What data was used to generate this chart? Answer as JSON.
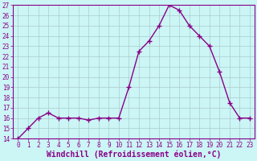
{
  "x": [
    0,
    1,
    2,
    3,
    4,
    5,
    6,
    7,
    8,
    9,
    10,
    11,
    12,
    13,
    14,
    15,
    16,
    17,
    18,
    19,
    20,
    21,
    22,
    23
  ],
  "y": [
    14,
    15,
    16,
    16.5,
    16,
    16,
    16,
    15.8,
    16,
    16,
    16,
    19,
    22.5,
    23.5,
    25,
    27,
    26.5,
    25,
    24,
    23,
    20.5,
    17.5,
    16,
    16
  ],
  "line_color": "#880088",
  "marker": "+",
  "marker_size": 4,
  "marker_lw": 1.0,
  "bg_color": "#ccf5f5",
  "grid_color": "#aacccc",
  "xlabel": "Windchill (Refroidissement éolien,°C)",
  "xlabel_fontsize": 7,
  "ylim": [
    14,
    27
  ],
  "xlim": [
    -0.5,
    23.5
  ],
  "yticks": [
    14,
    15,
    16,
    17,
    18,
    19,
    20,
    21,
    22,
    23,
    24,
    25,
    26,
    27
  ],
  "xticks": [
    0,
    1,
    2,
    3,
    4,
    5,
    6,
    7,
    8,
    9,
    10,
    11,
    12,
    13,
    14,
    15,
    16,
    17,
    18,
    19,
    20,
    21,
    22,
    23
  ],
  "tick_fontsize": 5.5,
  "axis_label_color": "#880088",
  "tick_color": "#880088",
  "spine_color": "#880088",
  "line_width": 1.0
}
